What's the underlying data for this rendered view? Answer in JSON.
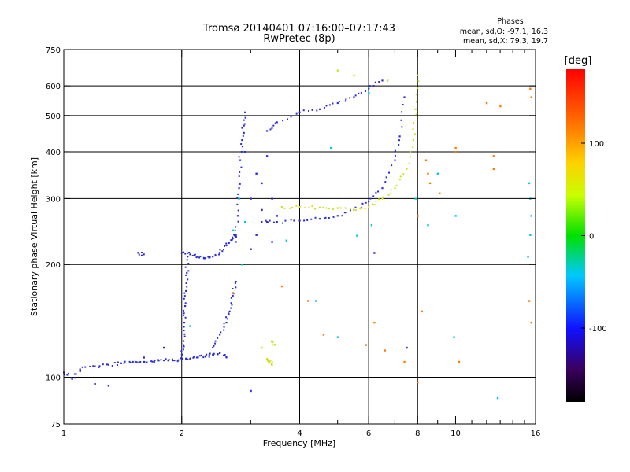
{
  "chart_data": {
    "type": "scatter",
    "title": "Tromsø 20140401 07:16:00–07:17:43",
    "subtitle": "RwPretec (8p)",
    "xlabel": "Frequency [MHz]",
    "ylabel": "Stationary phase Virtual Height [km]",
    "x_scale": "log",
    "y_scale": "log",
    "xlim": [
      1,
      16
    ],
    "ylim": [
      75,
      750
    ],
    "x_ticks": [
      1,
      2,
      4,
      6,
      8,
      10,
      16
    ],
    "x_tick_labels": [
      "1",
      "2",
      "4",
      "6",
      "8",
      "10",
      "16"
    ],
    "x_gridlines": [
      2,
      4,
      6,
      8
    ],
    "x_minor_ticks": [
      3,
      5,
      7,
      9,
      11,
      12,
      13,
      14,
      15
    ],
    "y_ticks": [
      75,
      100,
      200,
      300,
      400,
      500,
      600,
      750
    ],
    "y_tick_labels": [
      "75",
      "100",
      "200",
      "300",
      "400",
      "500",
      "600",
      "750"
    ],
    "y_gridlines": [
      100,
      200,
      300,
      400,
      500,
      600
    ],
    "grid": true,
    "stats": {
      "heading": "Phases",
      "line1": "mean, sd,O: -97.1, 16.3",
      "line2": "mean, sd,X:  79.3, 19.7"
    },
    "colorbar": {
      "label": "[deg]",
      "min": -180,
      "max": 180,
      "ticks": [
        100,
        0,
        -100
      ],
      "tick_labels": [
        "100",
        "0",
        "-100"
      ],
      "colormap": "rainbow"
    },
    "series": [
      {
        "mode": "O",
        "phase_mean": -97.1,
        "color": "#2a2ae0",
        "traces": [
          {
            "x": [
              1.0,
              1.05,
              1.1,
              1.2,
              1.3,
              1.4,
              1.5,
              1.6,
              1.7,
              1.8,
              1.9,
              2.0,
              2.1,
              2.2,
              2.3,
              2.4,
              2.5,
              2.6
            ],
            "y": [
              103,
              99,
              105,
              107,
              108,
              109,
              110,
              110,
              110,
              111,
              111,
              112,
              112,
              113,
              114,
              115,
              116,
              113
            ]
          },
          {
            "x": [
              2.0,
              2.02,
              2.03,
              2.04,
              2.05,
              2.06,
              2.07
            ],
            "y": [
              115,
              125,
              140,
              155,
              170,
              190,
              210
            ]
          },
          {
            "x": [
              2.0,
              2.1,
              2.2,
              2.3,
              2.4,
              2.5,
              2.6,
              2.7,
              2.75
            ],
            "y": [
              215,
              213,
              210,
              208,
              210,
              215,
              225,
              235,
              240
            ]
          },
          {
            "x": [
              2.4,
              2.5,
              2.6,
              2.65,
              2.7,
              2.75
            ],
            "y": [
              120,
              130,
              140,
              150,
              165,
              180
            ]
          },
          {
            "x": [
              2.75,
              2.78,
              2.8,
              2.82,
              2.85,
              2.88,
              2.9
            ],
            "y": [
              230,
              270,
              320,
              380,
              430,
              470,
              510
            ]
          },
          {
            "x": [
              3.2,
              3.5,
              4.0,
              4.5,
              5.0,
              5.5,
              6.0,
              6.5,
              7.0,
              7.2,
              7.4
            ],
            "y": [
              260,
              260,
              262,
              265,
              270,
              280,
              295,
              320,
              380,
              440,
              560
            ]
          },
          {
            "x": [
              3.3,
              3.5,
              4.0,
              4.5,
              5.0,
              5.5,
              6.0,
              6.5
            ],
            "y": [
              455,
              480,
              510,
              520,
              540,
              560,
              590,
              620
            ]
          },
          {
            "x": [
              1.55,
              1.6
            ],
            "y": [
              215,
              213
            ]
          }
        ],
        "scatter_points": [
          [
            3.0,
            300
          ],
          [
            3.1,
            240
          ],
          [
            3.1,
            350
          ],
          [
            3.2,
            280
          ],
          [
            3.2,
            330
          ],
          [
            3.3,
            260
          ],
          [
            3.4,
            300
          ],
          [
            3.0,
            220
          ],
          [
            3.3,
            390
          ],
          [
            2.9,
            400
          ],
          [
            3.4,
            230
          ],
          [
            3.5,
            270
          ],
          [
            6.2,
            215
          ],
          [
            7.5,
            120
          ],
          [
            3.0,
            92
          ],
          [
            1.3,
            95
          ],
          [
            1.1,
            104
          ],
          [
            1.2,
            96
          ],
          [
            1.8,
            120
          ],
          [
            1.6,
            113
          ]
        ]
      },
      {
        "mode": "X",
        "phase_mean": 79.3,
        "color": "#d0e020",
        "traces": [
          {
            "x": [
              3.6,
              4.0,
              4.5,
              5.0,
              5.5,
              6.0,
              6.5,
              7.0,
              7.5,
              7.8,
              7.9,
              8.0
            ],
            "y": [
              285,
              285,
              284,
              283,
              280,
              285,
              300,
              320,
              360,
              430,
              520,
              640
            ]
          },
          {
            "x": [
              3.4,
              3.45
            ],
            "y": [
              125,
              122
            ]
          },
          {
            "x": [
              3.3,
              3.35,
              3.4
            ],
            "y": [
              112,
              110,
              108
            ]
          }
        ],
        "scatter_points": [
          [
            5.0,
            660
          ],
          [
            5.5,
            640
          ],
          [
            6.7,
            620
          ],
          [
            3.2,
            120
          ]
        ]
      },
      {
        "mode": "scattered",
        "color": "#ff7a00",
        "scatter_points": [
          [
            10.0,
            400
          ],
          [
            10.0,
            410
          ],
          [
            12.5,
            360
          ],
          [
            12.5,
            390
          ],
          [
            12.0,
            540
          ],
          [
            13.0,
            530
          ],
          [
            15.6,
            560
          ],
          [
            15.5,
            590
          ],
          [
            15.4,
            160
          ],
          [
            15.6,
            140
          ],
          [
            4.6,
            130
          ],
          [
            5.9,
            122
          ],
          [
            6.6,
            118
          ],
          [
            7.4,
            110
          ],
          [
            8.0,
            97
          ],
          [
            3.6,
            175
          ],
          [
            4.2,
            160
          ],
          [
            8.2,
            150
          ],
          [
            6.2,
            140
          ],
          [
            2.7,
            168
          ],
          [
            10.2,
            110
          ],
          [
            8.4,
            380
          ],
          [
            8.6,
            330
          ],
          [
            8.5,
            350
          ],
          [
            8.0,
            270
          ],
          [
            9.1,
            310
          ]
        ]
      },
      {
        "mode": "scattered",
        "color": "#00c8e0",
        "scatter_points": [
          [
            2.8,
            300
          ],
          [
            2.85,
            200
          ],
          [
            2.9,
            260
          ],
          [
            15.5,
            300
          ],
          [
            15.4,
            330
          ],
          [
            15.6,
            270
          ],
          [
            15.5,
            240
          ],
          [
            15.3,
            210
          ],
          [
            8.5,
            255
          ],
          [
            7.9,
            300
          ],
          [
            6.1,
            255
          ],
          [
            10.0,
            270
          ],
          [
            9.9,
            128
          ],
          [
            5.6,
            239
          ],
          [
            4.4,
            160
          ],
          [
            5.0,
            128
          ],
          [
            12.8,
            88
          ],
          [
            9.0,
            350
          ],
          [
            4.8,
            410
          ],
          [
            3.7,
            232
          ],
          [
            6.0,
            575
          ],
          [
            2.7,
            247
          ],
          [
            2.1,
            137
          ]
        ]
      }
    ]
  }
}
